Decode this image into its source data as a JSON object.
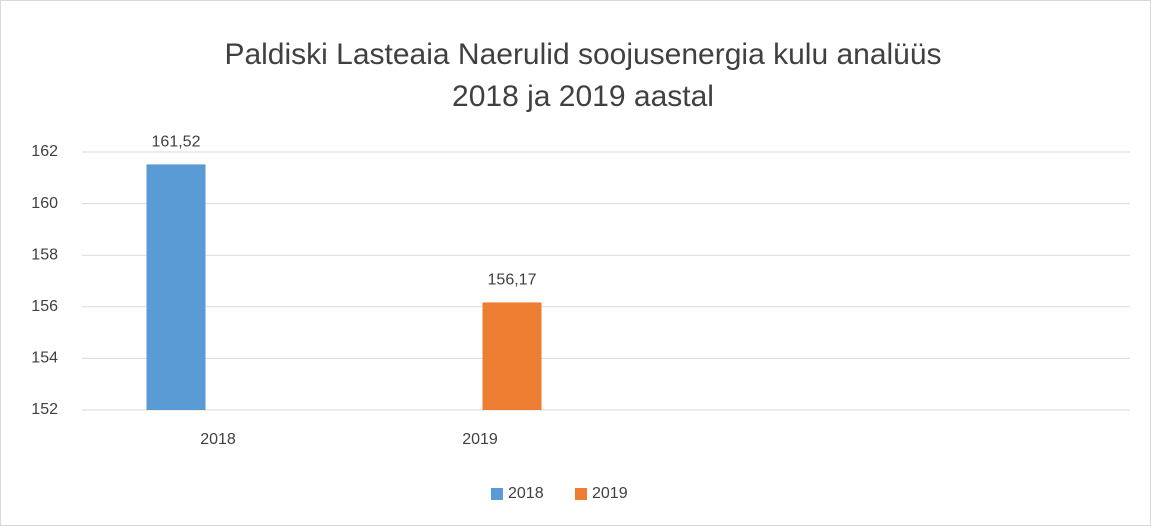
{
  "chart_data": {
    "type": "bar",
    "title": [
      "Paldiski Lasteaia Naerulid soojusenergia kulu analüüs",
      "2018 ja 2019 aastal"
    ],
    "categories": [
      "2018",
      "2019",
      null,
      null
    ],
    "series": [
      {
        "name": "2018",
        "color": "#5b9bd5",
        "values": [
          161.52,
          null,
          null,
          null
        ],
        "value_labels": [
          "161,52",
          null,
          null,
          null
        ]
      },
      {
        "name": "2019",
        "color": "#ed7d31",
        "values": [
          null,
          156.17,
          null,
          null
        ],
        "value_labels": [
          null,
          "156,17",
          null,
          null
        ]
      }
    ],
    "ylim": [
      152,
      162
    ],
    "yticks": [
      152,
      154,
      156,
      158,
      160,
      162
    ],
    "grid": true,
    "legend": "bottom"
  }
}
